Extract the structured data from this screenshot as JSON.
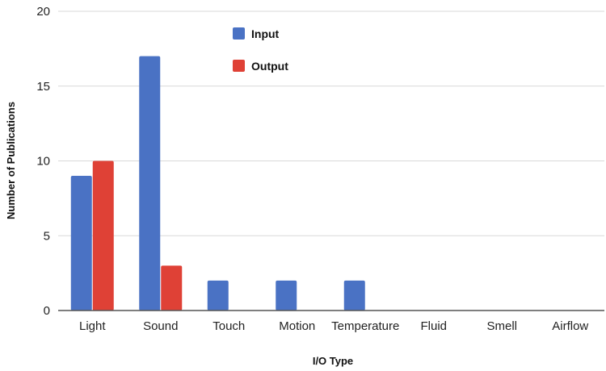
{
  "chart_data": {
    "type": "bar",
    "categories": [
      "Light",
      "Sound",
      "Touch",
      "Motion",
      "Temperature",
      "Fluid",
      "Smell",
      "Airflow"
    ],
    "series": [
      {
        "name": "Input",
        "values": [
          9,
          17,
          2,
          2,
          2,
          0,
          0,
          0
        ],
        "color": "#4a72c4"
      },
      {
        "name": "Output",
        "values": [
          10,
          3,
          0,
          0,
          0,
          0,
          0,
          0
        ],
        "color": "#df4136"
      }
    ],
    "title": "",
    "xlabel": "I/O Type",
    "ylabel": "Number of Publications",
    "ylim": [
      0,
      20
    ],
    "yticks": [
      0,
      5,
      10,
      15,
      20
    ],
    "grid": true,
    "legend_position": "top-left-inside"
  }
}
